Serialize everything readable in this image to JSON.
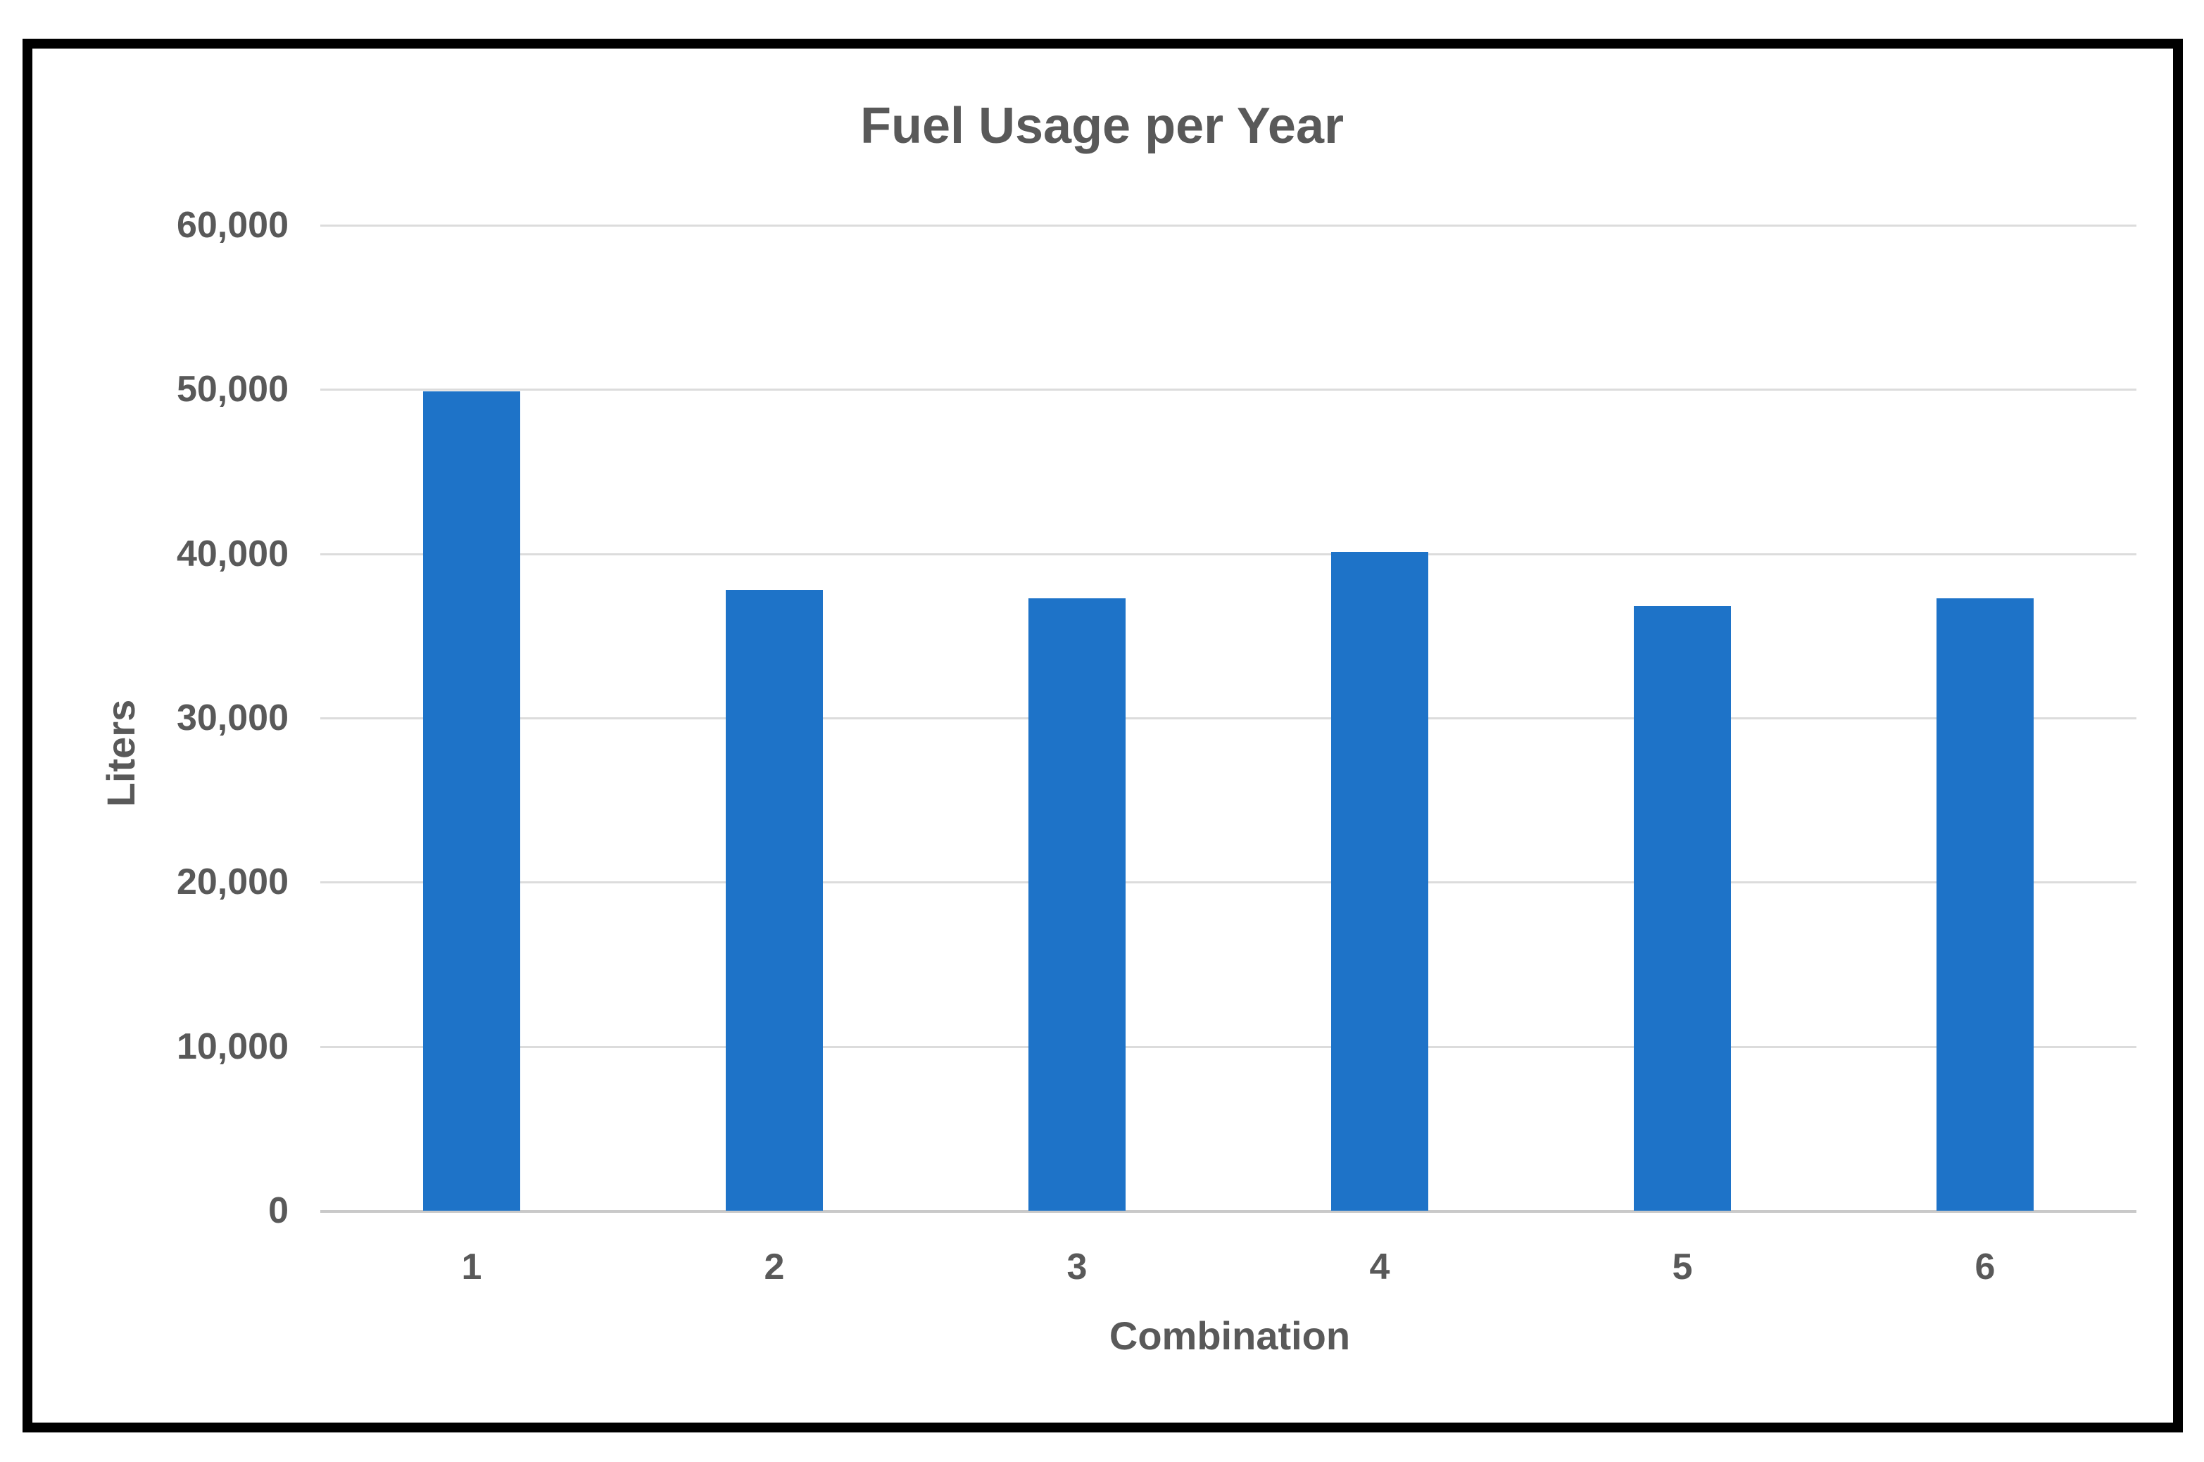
{
  "page": {
    "background": "#FFFFFF",
    "frame_color": "#000000"
  },
  "chart_data": {
    "type": "bar",
    "title": "Fuel Usage per Year",
    "xlabel": "Combination",
    "ylabel": "Liters",
    "categories": [
      "1",
      "2",
      "3",
      "4",
      "5",
      "6"
    ],
    "values": [
      49900,
      37800,
      37300,
      40100,
      36800,
      37300
    ],
    "ylim": [
      0,
      60000
    ],
    "ytick_interval": 10000,
    "ytick_labels": [
      "0",
      "10,000",
      "20,000",
      "30,000",
      "40,000",
      "50,000",
      "60,000"
    ],
    "grid": true,
    "legend": "none",
    "bar_color": "#1E73C8",
    "gridline_color": "#DCDCDC",
    "axis_line_color": "#C9C9C9",
    "text_color": "#595959"
  }
}
